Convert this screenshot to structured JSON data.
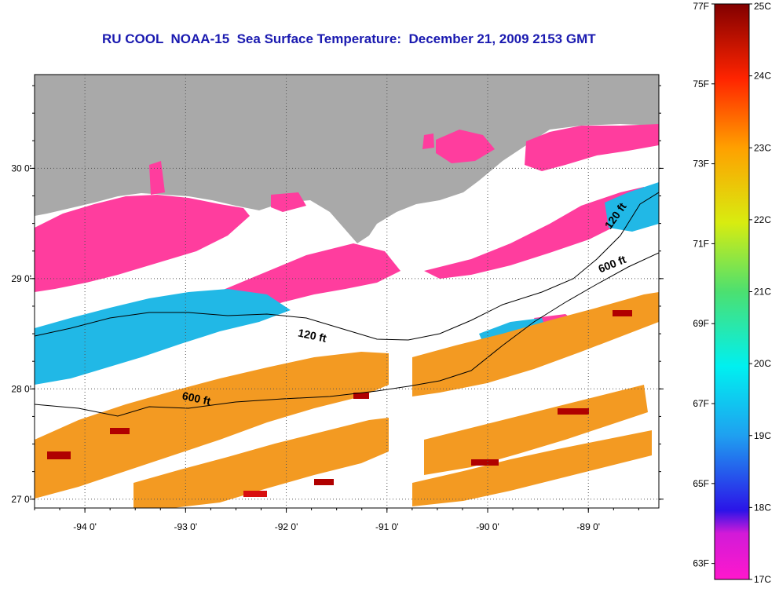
{
  "title": "RU COOL  NOAA-15  Sea Surface Temperature:  December 21, 2009 2153 GMT",
  "map": {
    "lon_range": [
      -94.5,
      -88.3
    ],
    "lat_range": [
      26.92,
      30.85
    ],
    "lon_ticks": [
      {
        "value": -94,
        "label": "-94 0'"
      },
      {
        "value": -93,
        "label": "-93 0'"
      },
      {
        "value": -92,
        "label": "-92 0'"
      },
      {
        "value": -91,
        "label": "-91 0'"
      },
      {
        "value": -90,
        "label": "-90 0'"
      },
      {
        "value": -89,
        "label": "-89 0'"
      }
    ],
    "lat_ticks": [
      {
        "value": 30,
        "label": "30 0'"
      },
      {
        "value": 29,
        "label": "29 0'"
      },
      {
        "value": 28,
        "label": "28 0'"
      },
      {
        "value": 27,
        "label": "27 0'"
      }
    ],
    "contour_labels": [
      {
        "text": "120 ft",
        "lon": -91.75,
        "lat": 28.45
      },
      {
        "text": "600 ft",
        "lon": -92.9,
        "lat": 27.88
      },
      {
        "text": "600 ft",
        "lon": -88.75,
        "lat": 29.1
      },
      {
        "text": "120 ft",
        "lon": -88.7,
        "lat": 29.55
      }
    ],
    "colors": {
      "land": "#a9a9a9",
      "cold": "#ff3d9e",
      "cool": "#21b8e6",
      "warm": "#f39a22",
      "hot": "#b00000"
    }
  },
  "colorbar": {
    "celsius_labels": [
      "25C",
      "24C",
      "23C",
      "22C",
      "21C",
      "20C",
      "19C",
      "18C",
      "17C"
    ],
    "fahrenheit_labels": [
      "77F",
      "75F",
      "73F",
      "71F",
      "69F",
      "67F",
      "65F",
      "63F"
    ],
    "range_c": [
      17,
      25
    ]
  }
}
